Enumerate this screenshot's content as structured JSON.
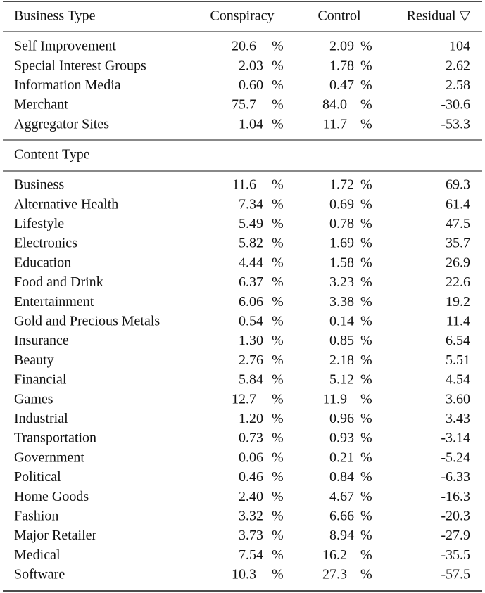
{
  "table": {
    "columns": [
      "Conspiracy",
      "Control",
      "Residual ▽"
    ],
    "unit": "%",
    "sections": [
      {
        "title": "Business Type",
        "rows": [
          [
            "Self Improvement",
            "20.6",
            "2.09",
            "104"
          ],
          [
            "Special Interest Groups",
            "2.03",
            "1.78",
            "2.62"
          ],
          [
            "Information Media",
            "0.60",
            "0.47",
            "2.58"
          ],
          [
            "Merchant",
            "75.7",
            "84.0",
            "-30.6"
          ],
          [
            "Aggregator Sites",
            "1.04",
            "11.7",
            "-53.3"
          ]
        ]
      },
      {
        "title": "Content Type",
        "rows": [
          [
            "Business",
            "11.6",
            "1.72",
            "69.3"
          ],
          [
            "Alternative Health",
            "7.34",
            "0.69",
            "61.4"
          ],
          [
            "Lifestyle",
            "5.49",
            "0.78",
            "47.5"
          ],
          [
            "Electronics",
            "5.82",
            "1.69",
            "35.7"
          ],
          [
            "Education",
            "4.44",
            "1.58",
            "26.9"
          ],
          [
            "Food and Drink",
            "6.37",
            "3.23",
            "22.6"
          ],
          [
            "Entertainment",
            "6.06",
            "3.38",
            "19.2"
          ],
          [
            "Gold and Precious Metals",
            "0.54",
            "0.14",
            "11.4"
          ],
          [
            "Insurance",
            "1.30",
            "0.85",
            "6.54"
          ],
          [
            "Beauty",
            "2.76",
            "2.18",
            "5.51"
          ],
          [
            "Financial",
            "5.84",
            "5.12",
            "4.54"
          ],
          [
            "Games",
            "12.7",
            "11.9",
            "3.60"
          ],
          [
            "Industrial",
            "1.20",
            "0.96",
            "3.43"
          ],
          [
            "Transportation",
            "0.73",
            "0.93",
            "-3.14"
          ],
          [
            "Government",
            "0.06",
            "0.21",
            "-5.24"
          ],
          [
            "Political",
            "0.46",
            "0.84",
            "-6.33"
          ],
          [
            "Home Goods",
            "2.40",
            "4.67",
            "-16.3"
          ],
          [
            "Fashion",
            "3.32",
            "6.66",
            "-20.3"
          ],
          [
            "Major Retailer",
            "3.73",
            "8.94",
            "-27.9"
          ],
          [
            "Medical",
            "7.54",
            "16.2",
            "-35.5"
          ],
          [
            "Software",
            "10.3",
            "27.3",
            "-57.5"
          ]
        ]
      }
    ]
  }
}
